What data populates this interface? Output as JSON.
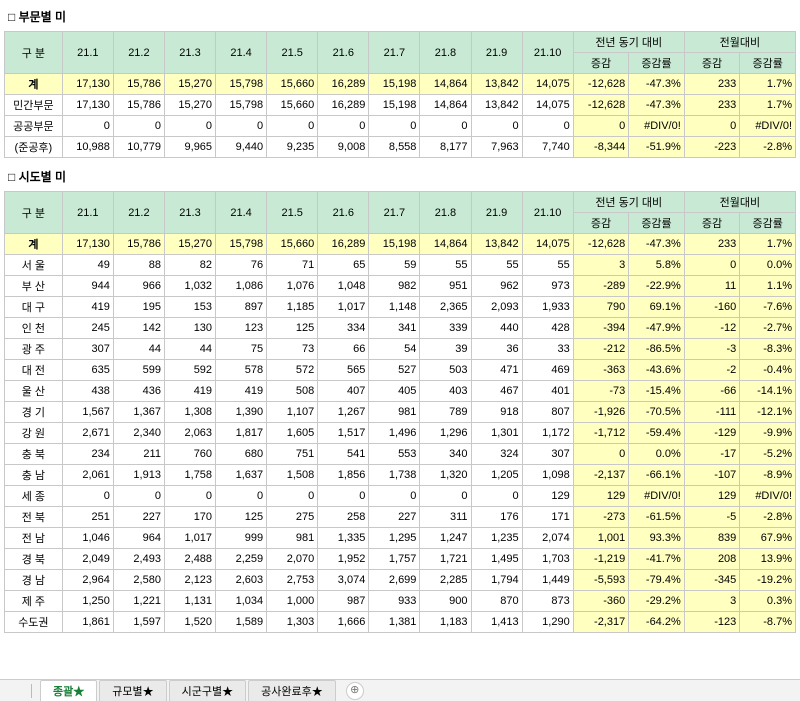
{
  "section1": {
    "title": "□ 부문별 미"
  },
  "section2": {
    "title": "□ 시도별 미"
  },
  "months": [
    "21.1",
    "21.2",
    "21.3",
    "21.4",
    "21.5",
    "21.6",
    "21.7",
    "21.8",
    "21.9",
    "21.10"
  ],
  "yoy": {
    "group": "전년 동기 대비",
    "d": "증감",
    "r": "증감률"
  },
  "mom": {
    "group": "전월대비",
    "d": "증감",
    "r": "증감률"
  },
  "rowHeader": "구  분",
  "t1": [
    {
      "label": "계",
      "total": true,
      "v": [
        "17,130",
        "15,786",
        "15,270",
        "15,798",
        "15,660",
        "16,289",
        "15,198",
        "14,864",
        "13,842",
        "14,075"
      ],
      "yoyD": "-12,628",
      "yoyR": "-47.3%",
      "momD": "233",
      "momR": "1.7%"
    },
    {
      "label": "민간부문",
      "v": [
        "17,130",
        "15,786",
        "15,270",
        "15,798",
        "15,660",
        "16,289",
        "15,198",
        "14,864",
        "13,842",
        "14,075"
      ],
      "yoyD": "-12,628",
      "yoyR": "-47.3%",
      "momD": "233",
      "momR": "1.7%"
    },
    {
      "label": "공공부문",
      "v": [
        "0",
        "0",
        "0",
        "0",
        "0",
        "0",
        "0",
        "0",
        "0",
        "0"
      ],
      "yoyD": "0",
      "yoyR": "#DIV/0!",
      "momD": "0",
      "momR": "#DIV/0!"
    },
    {
      "label": "(준공후)",
      "v": [
        "10,988",
        "10,779",
        "9,965",
        "9,440",
        "9,235",
        "9,008",
        "8,558",
        "8,177",
        "7,963",
        "7,740"
      ],
      "yoyD": "-8,344",
      "yoyR": "-51.9%",
      "momD": "-223",
      "momR": "-2.8%"
    }
  ],
  "t2": [
    {
      "label": "계",
      "total": true,
      "v": [
        "17,130",
        "15,786",
        "15,270",
        "15,798",
        "15,660",
        "16,289",
        "15,198",
        "14,864",
        "13,842",
        "14,075"
      ],
      "yoyD": "-12,628",
      "yoyR": "-47.3%",
      "momD": "233",
      "momR": "1.7%"
    },
    {
      "label": "서  울",
      "v": [
        "49",
        "88",
        "82",
        "76",
        "71",
        "65",
        "59",
        "55",
        "55",
        "55"
      ],
      "yoyD": "3",
      "yoyR": "5.8%",
      "momD": "0",
      "momR": "0.0%"
    },
    {
      "label": "부  산",
      "v": [
        "944",
        "966",
        "1,032",
        "1,086",
        "1,076",
        "1,048",
        "982",
        "951",
        "962",
        "973"
      ],
      "yoyD": "-289",
      "yoyR": "-22.9%",
      "momD": "11",
      "momR": "1.1%"
    },
    {
      "label": "대  구",
      "v": [
        "419",
        "195",
        "153",
        "897",
        "1,185",
        "1,017",
        "1,148",
        "2,365",
        "2,093",
        "1,933"
      ],
      "yoyD": "790",
      "yoyR": "69.1%",
      "momD": "-160",
      "momR": "-7.6%"
    },
    {
      "label": "인  천",
      "v": [
        "245",
        "142",
        "130",
        "123",
        "125",
        "334",
        "341",
        "339",
        "440",
        "428"
      ],
      "yoyD": "-394",
      "yoyR": "-47.9%",
      "momD": "-12",
      "momR": "-2.7%"
    },
    {
      "label": "광  주",
      "v": [
        "307",
        "44",
        "44",
        "75",
        "73",
        "66",
        "54",
        "39",
        "36",
        "33"
      ],
      "yoyD": "-212",
      "yoyR": "-86.5%",
      "momD": "-3",
      "momR": "-8.3%"
    },
    {
      "label": "대  전",
      "v": [
        "635",
        "599",
        "592",
        "578",
        "572",
        "565",
        "527",
        "503",
        "471",
        "469"
      ],
      "yoyD": "-363",
      "yoyR": "-43.6%",
      "momD": "-2",
      "momR": "-0.4%"
    },
    {
      "label": "울  산",
      "v": [
        "438",
        "436",
        "419",
        "419",
        "508",
        "407",
        "405",
        "403",
        "467",
        "401"
      ],
      "yoyD": "-73",
      "yoyR": "-15.4%",
      "momD": "-66",
      "momR": "-14.1%"
    },
    {
      "label": "경  기",
      "v": [
        "1,567",
        "1,367",
        "1,308",
        "1,390",
        "1,107",
        "1,267",
        "981",
        "789",
        "918",
        "807"
      ],
      "yoyD": "-1,926",
      "yoyR": "-70.5%",
      "momD": "-111",
      "momR": "-12.1%"
    },
    {
      "label": "강  원",
      "v": [
        "2,671",
        "2,340",
        "2,063",
        "1,817",
        "1,605",
        "1,517",
        "1,496",
        "1,296",
        "1,301",
        "1,172"
      ],
      "yoyD": "-1,712",
      "yoyR": "-59.4%",
      "momD": "-129",
      "momR": "-9.9%"
    },
    {
      "label": "충  북",
      "v": [
        "234",
        "211",
        "760",
        "680",
        "751",
        "541",
        "553",
        "340",
        "324",
        "307"
      ],
      "yoyD": "0",
      "yoyR": "0.0%",
      "momD": "-17",
      "momR": "-5.2%"
    },
    {
      "label": "충  남",
      "v": [
        "2,061",
        "1,913",
        "1,758",
        "1,637",
        "1,508",
        "1,856",
        "1,738",
        "1,320",
        "1,205",
        "1,098"
      ],
      "yoyD": "-2,137",
      "yoyR": "-66.1%",
      "momD": "-107",
      "momR": "-8.9%"
    },
    {
      "label": "세  종",
      "v": [
        "0",
        "0",
        "0",
        "0",
        "0",
        "0",
        "0",
        "0",
        "0",
        "129"
      ],
      "yoyD": "129",
      "yoyR": "#DIV/0!",
      "momD": "129",
      "momR": "#DIV/0!"
    },
    {
      "label": "전  북",
      "v": [
        "251",
        "227",
        "170",
        "125",
        "275",
        "258",
        "227",
        "311",
        "176",
        "171"
      ],
      "yoyD": "-273",
      "yoyR": "-61.5%",
      "momD": "-5",
      "momR": "-2.8%"
    },
    {
      "label": "전  남",
      "v": [
        "1,046",
        "964",
        "1,017",
        "999",
        "981",
        "1,335",
        "1,295",
        "1,247",
        "1,235",
        "2,074"
      ],
      "yoyD": "1,001",
      "yoyR": "93.3%",
      "momD": "839",
      "momR": "67.9%"
    },
    {
      "label": "경  북",
      "v": [
        "2,049",
        "2,493",
        "2,488",
        "2,259",
        "2,070",
        "1,952",
        "1,757",
        "1,721",
        "1,495",
        "1,703"
      ],
      "yoyD": "-1,219",
      "yoyR": "-41.7%",
      "momD": "208",
      "momR": "13.9%"
    },
    {
      "label": "경  남",
      "v": [
        "2,964",
        "2,580",
        "2,123",
        "2,603",
        "2,753",
        "3,074",
        "2,699",
        "2,285",
        "1,794",
        "1,449"
      ],
      "yoyD": "-5,593",
      "yoyR": "-79.4%",
      "momD": "-345",
      "momR": "-19.2%"
    },
    {
      "label": "제  주",
      "v": [
        "1,250",
        "1,221",
        "1,131",
        "1,034",
        "1,000",
        "987",
        "933",
        "900",
        "870",
        "873"
      ],
      "yoyD": "-360",
      "yoyR": "-29.2%",
      "momD": "3",
      "momR": "0.3%"
    },
    {
      "label": "수도권",
      "v": [
        "1,861",
        "1,597",
        "1,520",
        "1,589",
        "1,303",
        "1,666",
        "1,381",
        "1,183",
        "1,413",
        "1,290"
      ],
      "yoyD": "-2,317",
      "yoyR": "-64.2%",
      "momD": "-123",
      "momR": "-8.7%"
    }
  ],
  "tabs": {
    "items": [
      "종괄★",
      "규모별★",
      "시군구별★",
      "공사완료후★"
    ],
    "active": 0,
    "add": "⊕"
  }
}
